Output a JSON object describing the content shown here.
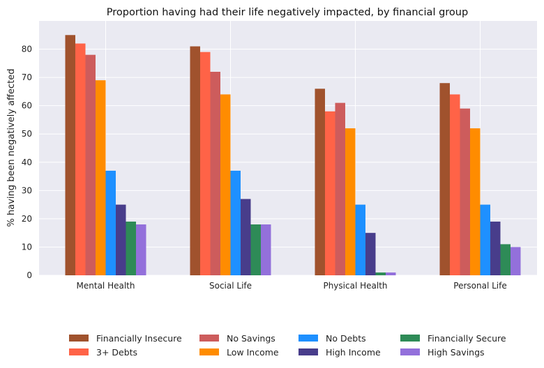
{
  "chart_data": {
    "type": "bar",
    "title": "Proportion having had their life negatively impacted, by financial group",
    "xlabel": "",
    "ylabel": "% having been negatively affected",
    "categories": [
      "Mental Health",
      "Social Life",
      "Physical Health",
      "Personal Life"
    ],
    "ylim": [
      0,
      90
    ],
    "yticks": [
      0,
      10,
      20,
      30,
      40,
      50,
      60,
      70,
      80
    ],
    "grid": true,
    "legend_position": "bottom",
    "series": [
      {
        "name": "Financially Insecure",
        "color": "#a0522d",
        "values": [
          85,
          81,
          66,
          68
        ]
      },
      {
        "name": "3+ Debts",
        "color": "#ff6347",
        "values": [
          82,
          79,
          58,
          64
        ]
      },
      {
        "name": "No Savings",
        "color": "#cd5c5c",
        "values": [
          78,
          72,
          61,
          59
        ]
      },
      {
        "name": "Low Income",
        "color": "#ff8c00",
        "values": [
          69,
          64,
          52,
          52
        ]
      },
      {
        "name": "No Debts",
        "color": "#1e90ff",
        "values": [
          37,
          37,
          25,
          25
        ]
      },
      {
        "name": "High Income",
        "color": "#483d8b",
        "values": [
          25,
          27,
          15,
          19
        ]
      },
      {
        "name": "Financially Secure",
        "color": "#2e8b57",
        "values": [
          19,
          18,
          1,
          11
        ]
      },
      {
        "name": "High Savings",
        "color": "#9370db",
        "values": [
          18,
          18,
          1,
          10
        ]
      }
    ]
  }
}
